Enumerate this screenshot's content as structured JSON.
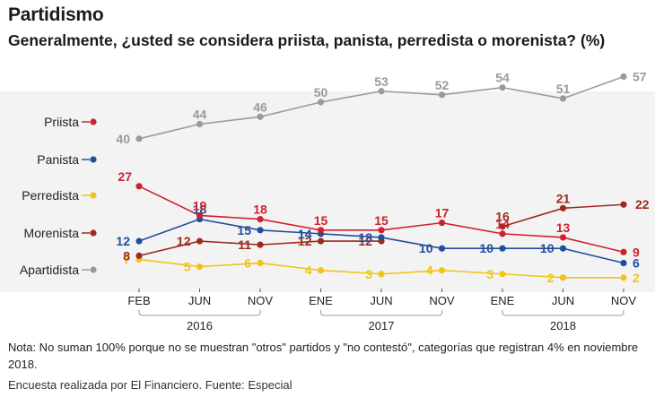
{
  "title": "Partidismo",
  "subtitle": "Generalmente, ¿usted se considera priista, panista, perredista o morenista? (%)",
  "note": "Nota: No suman 100% porque no se muestran \"otros\" partidos y \"no contestó\", categorías que registran 4% en noviembre 2018.",
  "source_main": "Encuesta realizada por El Financiero.",
  "source_extra": "Fuente: Especial",
  "chart_data": {
    "type": "line",
    "x": [
      "FEB",
      "JUN",
      "NOV",
      "ENE",
      "JUN",
      "NOV",
      "ENE",
      "JUN",
      "NOV"
    ],
    "year_groups": [
      {
        "label": "2016",
        "from": 0,
        "to": 2
      },
      {
        "label": "2017",
        "from": 3,
        "to": 5
      },
      {
        "label": "2018",
        "from": 6,
        "to": 8
      }
    ],
    "ylim": [
      0,
      60
    ],
    "grid": false,
    "legend_position": "left",
    "series": [
      {
        "name": "Priista",
        "color": "#d0202e",
        "values": [
          27,
          19,
          18,
          15,
          15,
          17,
          14,
          13,
          9
        ]
      },
      {
        "name": "Panista",
        "color": "#1f4f9c",
        "values": [
          12,
          18,
          15,
          14,
          13,
          10,
          10,
          10,
          6
        ]
      },
      {
        "name": "Perredista",
        "color": "#f0c419",
        "values": [
          7,
          5,
          6,
          4,
          3,
          4,
          3,
          2,
          2
        ]
      },
      {
        "name": "Morenista",
        "color": "#9c2a1c",
        "values": [
          8,
          12,
          11,
          12,
          12,
          null,
          16,
          21,
          22
        ]
      },
      {
        "name": "Apartidista",
        "color": "#9a9a9a",
        "values": [
          40,
          44,
          46,
          50,
          53,
          52,
          54,
          51,
          57
        ]
      }
    ],
    "label_values": {
      "Priista": [
        "27",
        "19",
        "18",
        "15",
        "15",
        "17",
        "14",
        "13",
        "9"
      ],
      "Panista": [
        "12",
        "18",
        "15",
        "14",
        "13",
        "10",
        "10",
        "10",
        "6"
      ],
      "Perredista": [
        "7",
        "5",
        "6",
        "4",
        "3",
        "4",
        "3",
        "2",
        "2"
      ],
      "Morenista": [
        "8",
        "12",
        "11",
        "12",
        "12",
        "",
        "16",
        "21",
        "22"
      ],
      "Apartidista": [
        "40",
        "44",
        "46",
        "50",
        "53",
        "52",
        "54",
        "51",
        "57"
      ]
    }
  }
}
